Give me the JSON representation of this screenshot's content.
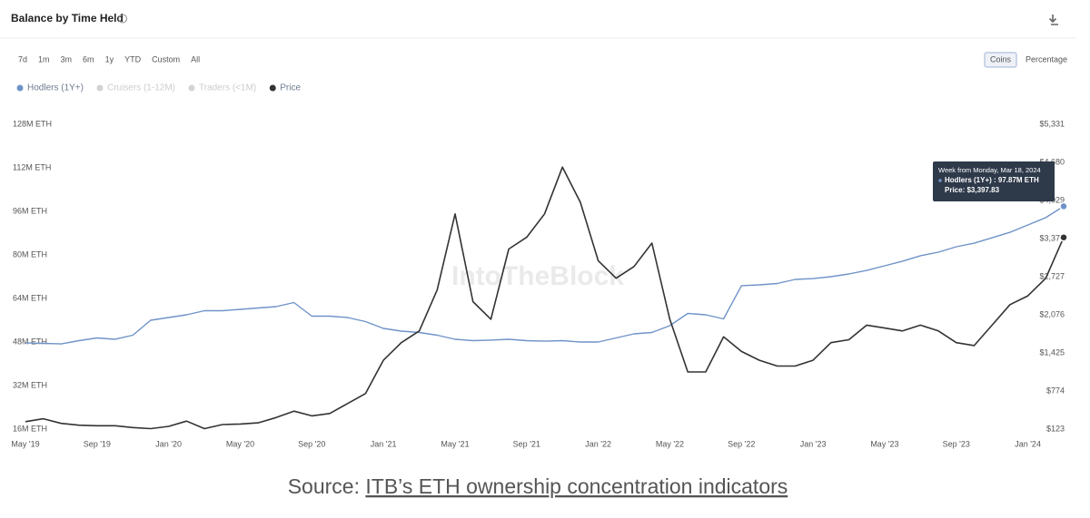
{
  "header": {
    "title": "Balance by Time Held",
    "ranges": [
      "7d",
      "1m",
      "3m",
      "6m",
      "1y",
      "YTD",
      "Custom",
      "All"
    ],
    "modes": [
      "Coins",
      "Percentage"
    ]
  },
  "chart_data": {
    "type": "line",
    "watermark": "IntoTheBlock",
    "categories": [
      "May '19",
      null,
      null,
      null,
      "Sep '19",
      null,
      null,
      null,
      "Jan '20",
      null,
      null,
      null,
      "May '20",
      null,
      null,
      null,
      "Sep '20",
      null,
      null,
      null,
      "Jan '21",
      null,
      null,
      null,
      "May '21",
      null,
      null,
      null,
      "Sep '21",
      null,
      null,
      null,
      "Jan '22",
      null,
      null,
      null,
      "May '22",
      null,
      null,
      null,
      "Sep '22",
      null,
      null,
      null,
      "Jan '23",
      null,
      null,
      null,
      "May '23",
      null,
      null,
      null,
      "Sep '23",
      null,
      null,
      null,
      "Jan '24",
      null,
      null
    ],
    "series": [
      {
        "name": "Hodlers (1Y+)",
        "color": "#6f93c8",
        "axis": "y",
        "values": [
          47.7,
          47.5,
          47.3,
          48.5,
          49.5,
          49,
          50.5,
          56,
          57,
          58,
          59.5,
          59.5,
          60,
          60.5,
          61,
          62.5,
          57.5,
          57.5,
          57,
          55.5,
          53,
          52,
          51.5,
          50.5,
          49,
          48.5,
          48.7,
          49,
          48.5,
          48.3,
          48.5,
          48,
          48,
          49.5,
          51,
          51.5,
          54,
          58.5,
          58,
          56.5,
          68.7,
          69,
          69.5,
          71,
          71.3,
          72,
          73,
          74.3,
          76,
          77.7,
          79.7,
          81,
          83,
          84.3,
          86.3,
          88.3,
          91,
          93.7,
          97.87
        ]
      },
      {
        "name": "Price",
        "color": "#333333",
        "axis": "y2",
        "values": [
          250,
          300,
          220,
          190,
          180,
          180,
          150,
          130,
          170,
          260,
          130,
          200,
          210,
          230,
          320,
          430,
          350,
          390,
          560,
          730,
          1300,
          1600,
          1800,
          2500,
          3800,
          2300,
          2000,
          3200,
          3400,
          3800,
          4600,
          4000,
          3000,
          2700,
          2900,
          3300,
          2000,
          1100,
          1100,
          1700,
          1450,
          1300,
          1200,
          1200,
          1300,
          1600,
          1650,
          1900,
          1850,
          1800,
          1900,
          1800,
          1600,
          1550,
          1900,
          2250,
          2400,
          2700,
          3397.83
        ]
      }
    ],
    "hidden_series": [
      {
        "name": "Cruisers (1-12M)",
        "color": "#d3d3d3"
      },
      {
        "name": "Traders (<1M)",
        "color": "#d3d3d3"
      }
    ],
    "ylim": [
      16,
      128
    ],
    "yticks": [
      {
        "value": 16,
        "label": "16M ETH"
      },
      {
        "value": 32,
        "label": "32M ETH"
      },
      {
        "value": 48,
        "label": "48M ETH"
      },
      {
        "value": 64,
        "label": "64M ETH"
      },
      {
        "value": 80,
        "label": "80M ETH"
      },
      {
        "value": 96,
        "label": "96M ETH"
      },
      {
        "value": 112,
        "label": "112M ETH"
      },
      {
        "value": 128,
        "label": "128M ETH"
      }
    ],
    "y2lim": [
      123,
      5331
    ],
    "y2ticks": [
      {
        "value": 123,
        "label": "$123"
      },
      {
        "value": 774,
        "label": "$774"
      },
      {
        "value": 1425,
        "label": "$1,425"
      },
      {
        "value": 2076,
        "label": "$2,076"
      },
      {
        "value": 2727,
        "label": "$2,727"
      },
      {
        "value": 3378,
        "label": "$3,378"
      },
      {
        "value": 4029,
        "label": "$4,029"
      },
      {
        "value": 4680,
        "label": "$4,680"
      },
      {
        "value": 5331,
        "label": "$5,331"
      }
    ],
    "grid": false,
    "tooltip": {
      "title": "Week from Monday, Mar 18, 2024",
      "lines": [
        "Hodlers (1Y+) : 97.87M ETH",
        "Price: $3,397.83"
      ]
    }
  },
  "caption": {
    "prefix": "Source: ",
    "link": "ITB’s ETH ownership concentration indicators"
  }
}
